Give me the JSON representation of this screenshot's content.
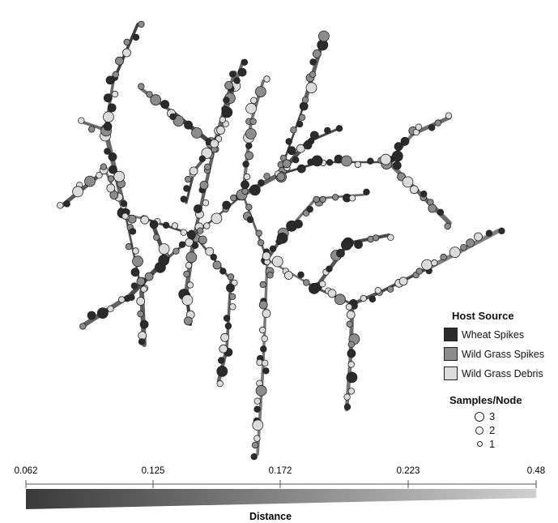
{
  "legend": {
    "title": "Host Source",
    "items": [
      {
        "label": "Wheat Spikes",
        "color": "#2b2b2b"
      },
      {
        "label": "Wild Grass Spikes",
        "color": "#8c8c8c"
      },
      {
        "label": "Wild Grass Debris",
        "color": "#dcdcdc"
      }
    ]
  },
  "size_legend": {
    "title": "Samples/Node",
    "items": [
      {
        "label": "3",
        "samples": 3
      },
      {
        "label": "2",
        "samples": 2
      },
      {
        "label": "1",
        "samples": 1
      }
    ]
  },
  "distance_scale": {
    "title": "Distance",
    "ticks": [
      "0.062",
      "0.125",
      "0.172",
      "0.223",
      "0.48"
    ],
    "gradient_start": "#3a3a3a",
    "gradient_end": "#cfcfcf"
  }
}
